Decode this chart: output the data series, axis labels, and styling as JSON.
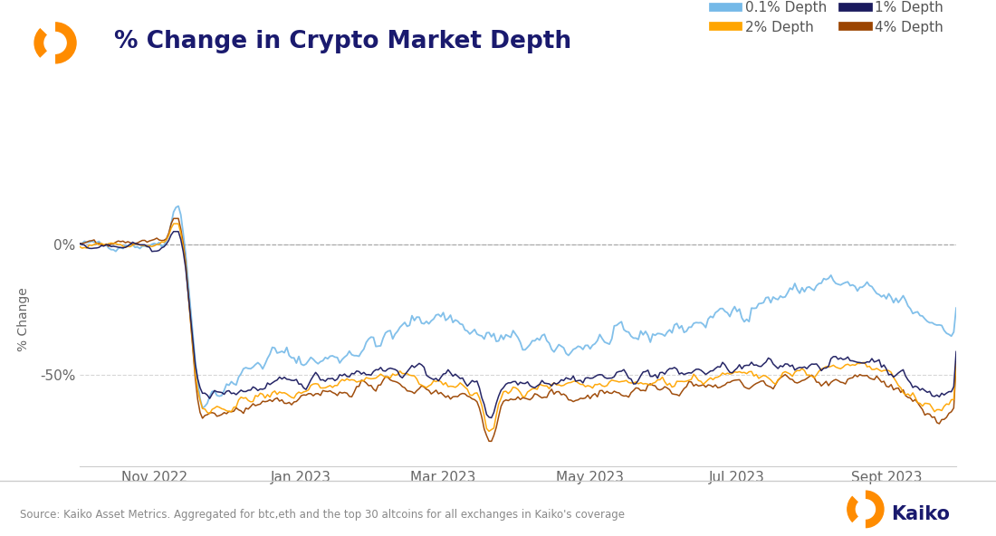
{
  "title": "% Change in Crypto Market Depth",
  "ylabel": "% Change",
  "source_text": "Source: Kaiko Asset Metrics. Aggregated for btc,eth and the top 30 altcoins for all exchanges in Kaiko's coverage",
  "colors": {
    "depth_01": "#74b9e8",
    "depth_1": "#1a1a5e",
    "depth_2": "#FFA500",
    "depth_4": "#9B4400"
  },
  "legend_labels": [
    "0.1% Depth",
    "1% Depth",
    "2% Depth",
    "4% Depth"
  ],
  "title_color": "#1a1a6e",
  "background_color": "#ffffff",
  "yticks": [
    0,
    -50
  ],
  "ytick_labels": [
    "0%",
    "-50%"
  ]
}
